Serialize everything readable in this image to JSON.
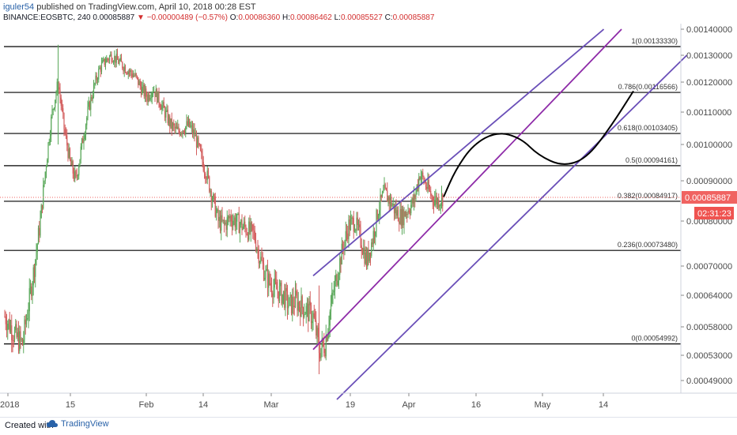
{
  "header": {
    "author": "iguler54",
    "published": "published on TradingView.com, April 10, 2018 00:28 EST",
    "symbol": "BINANCE:EOSBTC, 240",
    "last": "0.00085887",
    "change_arrow": "▼",
    "change": "−0.00000489 (−0.57%)",
    "o_label": "O:",
    "o": "0.00086360",
    "h_label": "H:",
    "h": "0.00086462",
    "l_label": "L:",
    "l": "0.00085527",
    "c_label": "C:",
    "c": "0.00085887"
  },
  "footer": {
    "created_with": "Created with",
    "brand": "TradingView"
  },
  "colors": {
    "up": "#5aa85a",
    "down": "#d35d5d",
    "channel": "#6a4fb8",
    "midline": "#8e2ba8",
    "fib": "#000000",
    "price_tag": "#f06361",
    "timer_tag": "#ef5350"
  },
  "chart_data": {
    "type": "candlestick",
    "symbol": "BINANCE:EOSBTC",
    "timeframe": "240",
    "y_ticks": [
      "0.00140000",
      "0.00130000",
      "0.00120000",
      "0.00110000",
      "0.00100000",
      "0.00090000",
      "0.00080000",
      "0.00070000",
      "0.00064000",
      "0.00058000",
      "0.00053000",
      "0.00049000"
    ],
    "x_ticks": [
      "2018",
      "15",
      "Feb",
      "14",
      "Mar",
      "19",
      "Apr",
      "16",
      "May",
      "14"
    ],
    "last_price_label": "0.00085887",
    "countdown_label": "02:31:23",
    "fib_levels": [
      {
        "ratio": "1",
        "value": "0.00133330"
      },
      {
        "ratio": "0.786",
        "value": "0.00116566"
      },
      {
        "ratio": "0.618",
        "value": "0.00103405"
      },
      {
        "ratio": "0.5",
        "value": "0.00094161"
      },
      {
        "ratio": "0.382",
        "value": "0.00084917"
      },
      {
        "ratio": "0.236",
        "value": "0.00073480"
      },
      {
        "ratio": "0",
        "value": "0.00054992"
      }
    ],
    "price_path": [
      [
        0,
        0.0006
      ],
      [
        1,
        0.00058
      ],
      [
        2,
        0.00056
      ],
      [
        3,
        0.00055
      ],
      [
        4,
        0.00062
      ],
      [
        5,
        0.0007
      ],
      [
        6,
        0.0008
      ],
      [
        7,
        0.00095
      ],
      [
        8,
        0.0011
      ],
      [
        9,
        0.0012
      ],
      [
        10,
        0.00105
      ],
      [
        11,
        0.00095
      ],
      [
        12,
        0.0009
      ],
      [
        13,
        0.001
      ],
      [
        14,
        0.0011
      ],
      [
        15,
        0.00118
      ],
      [
        16,
        0.00125
      ],
      [
        17,
        0.00128
      ],
      [
        18,
        0.0013
      ],
      [
        19,
        0.00128
      ],
      [
        20,
        0.00126
      ],
      [
        21,
        0.00124
      ],
      [
        22,
        0.00122
      ],
      [
        23,
        0.00118
      ],
      [
        24,
        0.00115
      ],
      [
        25,
        0.00118
      ],
      [
        26,
        0.00114
      ],
      [
        27,
        0.0011
      ],
      [
        28,
        0.00106
      ],
      [
        29,
        0.00104
      ],
      [
        30,
        0.00105
      ],
      [
        31,
        0.00106
      ],
      [
        32,
        0.00103
      ],
      [
        33,
        0.00097
      ],
      [
        34,
        0.00092
      ],
      [
        35,
        0.00086
      ],
      [
        36,
        0.0008
      ],
      [
        37,
        0.00079
      ],
      [
        38,
        0.00081
      ],
      [
        39,
        0.0008
      ],
      [
        40,
        0.00079
      ],
      [
        41,
        0.00078
      ],
      [
        42,
        0.00077
      ],
      [
        43,
        0.00072
      ],
      [
        44,
        0.00068
      ],
      [
        45,
        0.00066
      ],
      [
        46,
        0.00065
      ],
      [
        47,
        0.00064
      ],
      [
        48,
        0.00062
      ],
      [
        49,
        0.00063
      ],
      [
        50,
        0.00062
      ],
      [
        51,
        0.00061
      ],
      [
        52,
        0.0006
      ],
      [
        53,
        0.00054
      ],
      [
        54,
        0.00055
      ],
      [
        55,
        0.00062
      ],
      [
        56,
        0.00068
      ],
      [
        57,
        0.00074
      ],
      [
        58,
        0.00079
      ],
      [
        59,
        0.0008
      ],
      [
        60,
        0.00076
      ],
      [
        61,
        0.00071
      ],
      [
        62,
        0.00076
      ],
      [
        63,
        0.00083
      ],
      [
        64,
        0.00087
      ],
      [
        65,
        0.00085
      ],
      [
        66,
        0.00082
      ],
      [
        67,
        0.00081
      ],
      [
        68,
        0.00083
      ],
      [
        69,
        0.00085
      ],
      [
        70,
        0.00092
      ],
      [
        71,
        0.00089
      ],
      [
        72,
        0.00086
      ],
      [
        73,
        0.00085
      ],
      [
        74,
        0.00086
      ]
    ],
    "projection_path": [
      [
        74,
        0.00086
      ],
      [
        76,
        0.00093
      ],
      [
        79,
        0.001
      ],
      [
        83,
        0.00104
      ],
      [
        87,
        0.00102
      ],
      [
        90,
        0.00097
      ],
      [
        94,
        0.00094
      ],
      [
        98,
        0.00096
      ],
      [
        102,
        0.00105
      ],
      [
        106,
        0.00117
      ]
    ],
    "channel": {
      "upper": {
        "from": [
          52,
          0.00068
        ],
        "to": [
          101,
          0.0014
        ]
      },
      "middle": {
        "from": [
          52,
          0.00054
        ],
        "to": [
          104,
          0.0014
        ]
      },
      "lower": {
        "from": [
          56,
          0.00046
        ],
        "to": [
          115,
          0.0013
        ]
      }
    },
    "grid": false
  }
}
